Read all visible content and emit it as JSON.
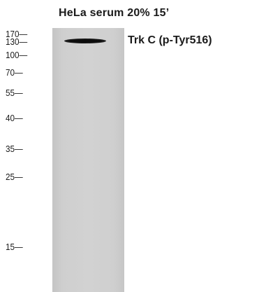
{
  "sample_label": "HeLa serum 20% 15’",
  "band_label": "Trk C (p-Tyr516)",
  "markers": [
    {
      "text": "170—"
    },
    {
      "text": "130—"
    },
    {
      "text": "100—"
    },
    {
      "text": "70—"
    },
    {
      "text": "55—"
    },
    {
      "text": "40—"
    },
    {
      "text": "35—"
    },
    {
      "text": "25—"
    },
    {
      "text": "15—"
    }
  ]
}
